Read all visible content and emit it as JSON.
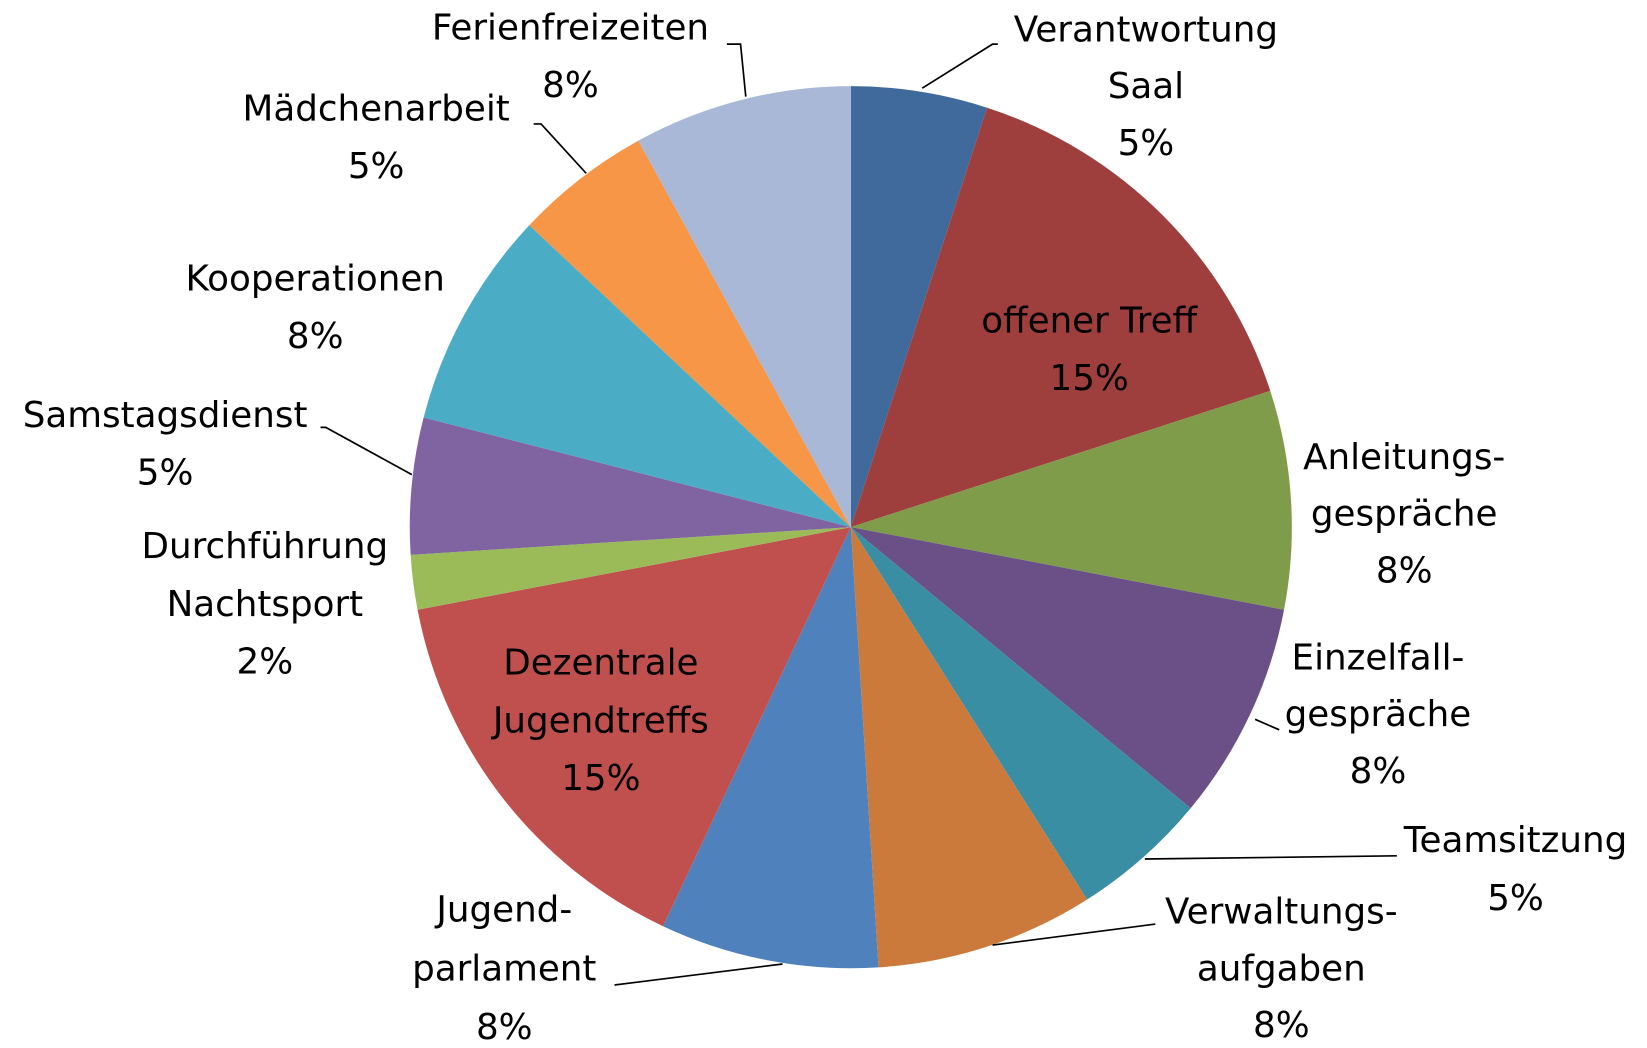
{
  "chart_data": {
    "type": "pie",
    "categories": [
      "Verantwortung\nSaal",
      "offener Treff",
      "Anleitungs-\ngespräche",
      "Einzelfall-\ngespräche",
      "Teamsitzung",
      "Verwaltungs-\naufgaben",
      "Jugend-\nparlament",
      "Dezentrale\nJugendtreffs",
      "Durchführung\nNachtsport",
      "Samstagsdienst",
      "Kooperationen",
      "Mädchenarbeit",
      "Ferienfreizeiten"
    ],
    "values": [
      5,
      15,
      8,
      8,
      5,
      8,
      8,
      15,
      2,
      5,
      8,
      5,
      8
    ],
    "value_labels": [
      "5%",
      "15%",
      "8%",
      "8%",
      "5%",
      "8%",
      "8%",
      "15%",
      "2%",
      "5%",
      "8%",
      "5%",
      "8%"
    ],
    "colors": [
      "#3f6a9b",
      "#9e3f3d",
      "#7f9c4a",
      "#6b5088",
      "#3a8ea3",
      "#cc7a3b",
      "#4f81bd",
      "#c0504d",
      "#9bbb59",
      "#8064a2",
      "#4bacc6",
      "#f79646",
      "#a9b8d7"
    ]
  }
}
